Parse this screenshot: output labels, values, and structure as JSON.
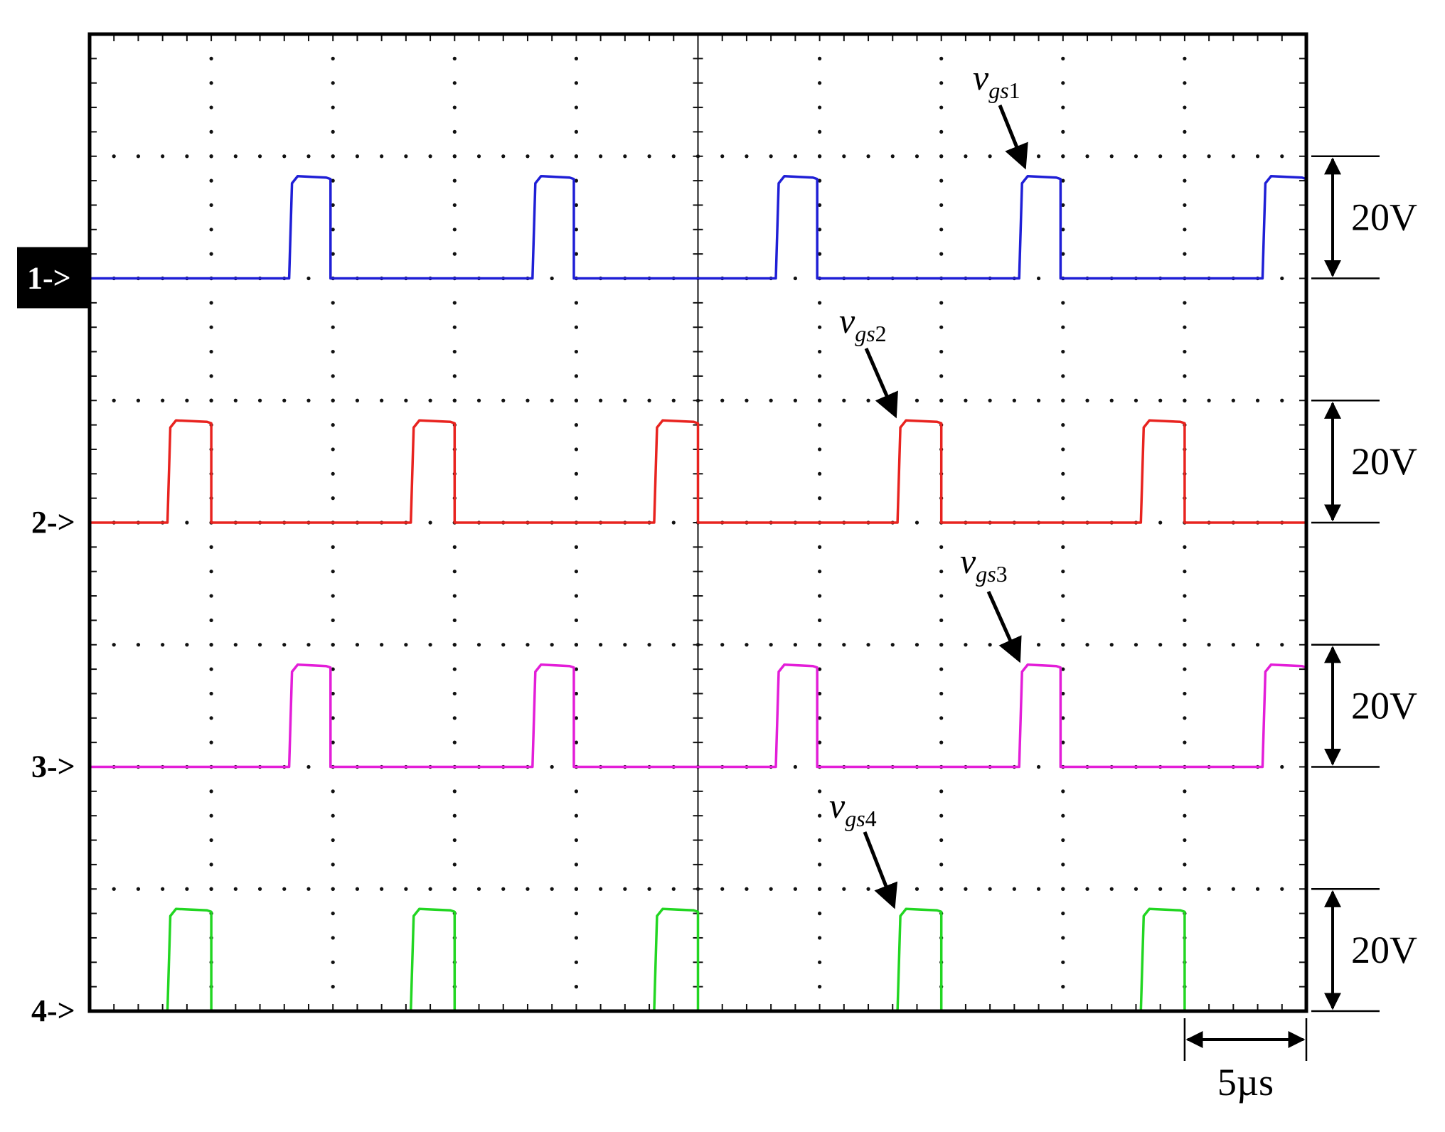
{
  "chart_data": {
    "type": "line",
    "title": "",
    "xlabel": "",
    "ylabel": "",
    "grid": true,
    "time_unit": "µs",
    "x_divisions": 10,
    "y_divisions": 8,
    "xlim": [
      0,
      50
    ],
    "series": [
      {
        "channel": "1",
        "marker_label": "1->",
        "marker_boxed": true,
        "annotation": {
          "base": "v",
          "sub": "gs",
          "num": "1"
        },
        "color": "#1f1fd6",
        "volts_per_div": 20,
        "x_edges": [
          [
            8.2,
            9.9
          ],
          [
            18.2,
            19.9
          ],
          [
            28.2,
            29.9
          ],
          [
            38.2,
            39.9
          ],
          [
            48.2,
            50
          ]
        ],
        "high_level_V": 20,
        "low_level_V": 0
      },
      {
        "channel": "2",
        "marker_label": "2->",
        "marker_boxed": false,
        "annotation": {
          "base": "v",
          "sub": "gs",
          "num": "2"
        },
        "color": "#e8231f",
        "volts_per_div": 20,
        "x_edges": [
          [
            3.2,
            5.0
          ],
          [
            13.2,
            15.0
          ],
          [
            23.2,
            25.0
          ],
          [
            33.2,
            35.0
          ],
          [
            43.2,
            45.0
          ]
        ],
        "high_level_V": 20,
        "low_level_V": 0
      },
      {
        "channel": "3",
        "marker_label": "3->",
        "marker_boxed": false,
        "annotation": {
          "base": "v",
          "sub": "gs",
          "num": "3"
        },
        "color": "#e31ed8",
        "volts_per_div": 20,
        "x_edges": [
          [
            8.2,
            9.9
          ],
          [
            18.2,
            19.9
          ],
          [
            28.2,
            29.9
          ],
          [
            38.2,
            39.9
          ],
          [
            48.2,
            50
          ]
        ],
        "high_level_V": 20,
        "low_level_V": 0
      },
      {
        "channel": "4",
        "marker_label": "4->",
        "marker_boxed": false,
        "annotation": {
          "base": "v",
          "sub": "gs",
          "num": "4"
        },
        "color": "#22d622",
        "volts_per_div": 20,
        "x_edges": [
          [
            3.2,
            5.0
          ],
          [
            13.2,
            15.0
          ],
          [
            23.2,
            25.0
          ],
          [
            33.2,
            35.0
          ],
          [
            43.2,
            45.0
          ]
        ],
        "high_level_V": 20,
        "low_level_V": 0
      }
    ],
    "scale_labels": {
      "volt": "20V",
      "time": "5µs"
    }
  }
}
